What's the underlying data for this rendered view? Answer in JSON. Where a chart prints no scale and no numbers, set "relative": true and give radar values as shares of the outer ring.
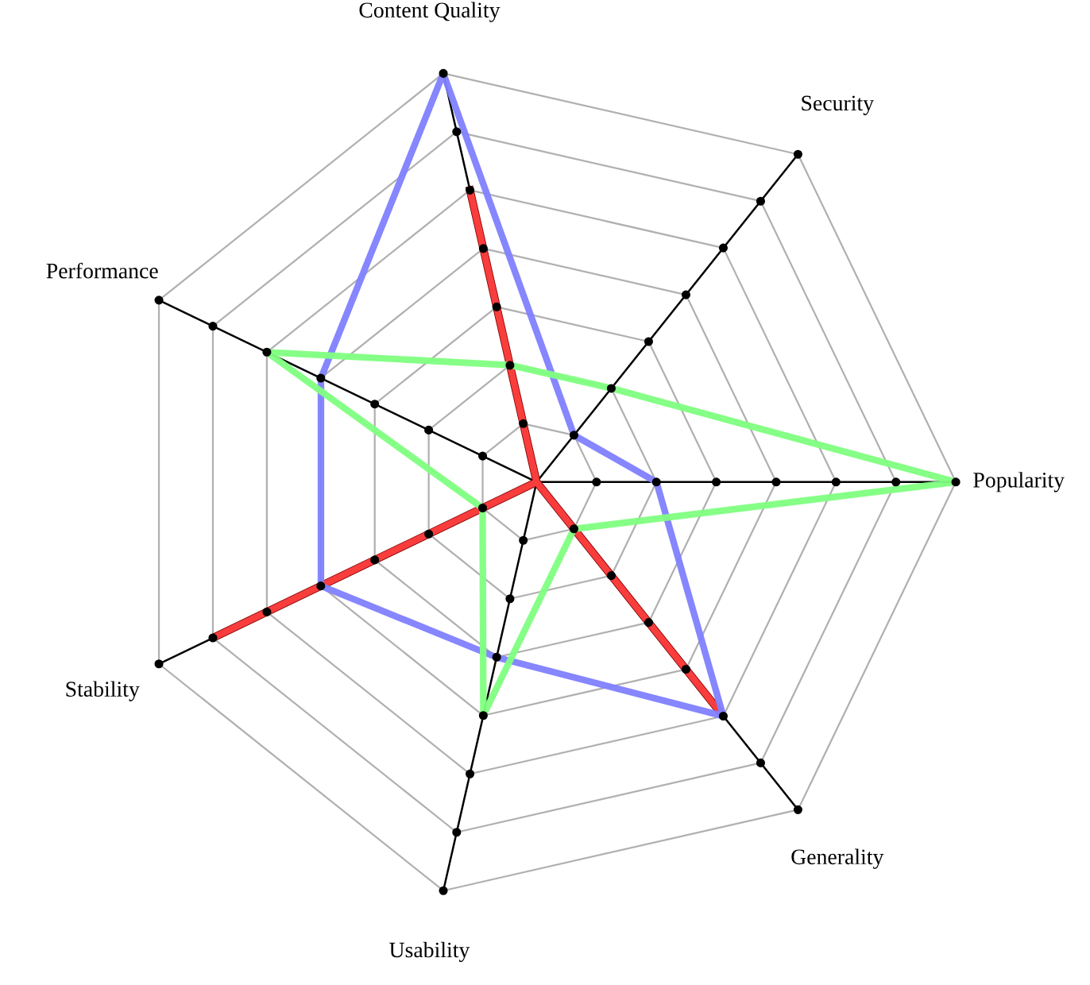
{
  "chart_data": {
    "type": "radar",
    "relative": true,
    "grid": true,
    "marker": "none",
    "categories": [
      "Content Quality",
      "Security",
      "Popularity",
      "Generality",
      "Usability",
      "Stability",
      "Performance"
    ],
    "series": [
      {
        "color": "#ff4040",
        "values": [
          0.714,
          0,
          0,
          0.714,
          0,
          0.857,
          0
        ]
      },
      {
        "color": "#8080ff",
        "values": [
          1,
          0.143,
          0.286,
          0.714,
          0.429,
          0.571,
          0.571
        ]
      },
      {
        "color": "#80ff80",
        "values": [
          0.286,
          0.286,
          1,
          0.143,
          0.571,
          0.143,
          0.714
        ]
      }
    ]
  }
}
